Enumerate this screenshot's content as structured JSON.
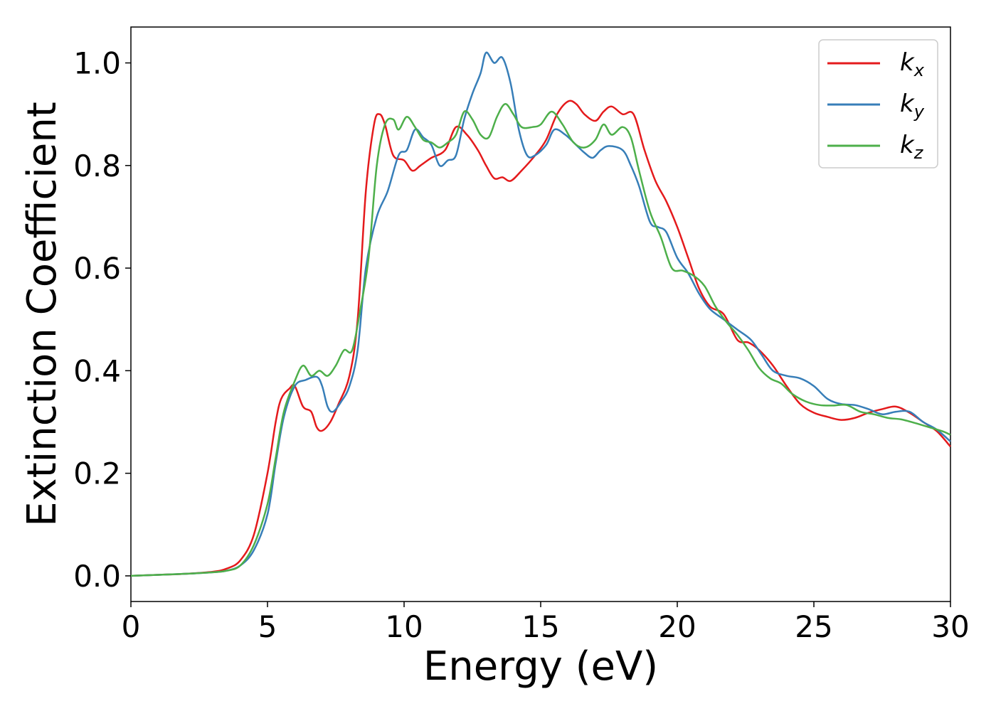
{
  "chart_data": {
    "type": "line",
    "title": "",
    "xlabel": "Energy (eV)",
    "ylabel": "Extinction Coefficient",
    "xlim": [
      0,
      30
    ],
    "ylim": [
      -0.05,
      1.07
    ],
    "xticks": [
      0,
      5,
      10,
      15,
      20,
      25,
      30
    ],
    "yticks": [
      0.0,
      0.2,
      0.4,
      0.6,
      0.8,
      1.0
    ],
    "xtick_labels": [
      "0",
      "5",
      "10",
      "15",
      "20",
      "25",
      "30"
    ],
    "ytick_labels": [
      "0.0",
      "0.2",
      "0.4",
      "0.6",
      "0.8",
      "1.0"
    ],
    "grid": false,
    "legend": {
      "placement": "top-right",
      "entries": [
        {
          "base": "k",
          "sub": "x",
          "color": "#e41a1c"
        },
        {
          "base": "k",
          "sub": "y",
          "color": "#377eb8"
        },
        {
          "base": "k",
          "sub": "z",
          "color": "#4daf4a"
        }
      ]
    },
    "series": [
      {
        "name": "kx",
        "color": "#e41a1c",
        "points": [
          [
            0,
            0.0
          ],
          [
            1,
            0.002
          ],
          [
            2,
            0.004
          ],
          [
            3,
            0.008
          ],
          [
            3.5,
            0.014
          ],
          [
            4,
            0.03
          ],
          [
            4.5,
            0.08
          ],
          [
            5,
            0.2
          ],
          [
            5.3,
            0.3
          ],
          [
            5.5,
            0.345
          ],
          [
            5.8,
            0.365
          ],
          [
            6.0,
            0.37
          ],
          [
            6.3,
            0.33
          ],
          [
            6.6,
            0.32
          ],
          [
            6.8,
            0.29
          ],
          [
            7.0,
            0.283
          ],
          [
            7.3,
            0.3
          ],
          [
            7.6,
            0.335
          ],
          [
            8.0,
            0.39
          ],
          [
            8.3,
            0.5
          ],
          [
            8.6,
            0.75
          ],
          [
            8.9,
            0.88
          ],
          [
            9.1,
            0.9
          ],
          [
            9.3,
            0.88
          ],
          [
            9.6,
            0.82
          ],
          [
            10.0,
            0.81
          ],
          [
            10.3,
            0.79
          ],
          [
            10.6,
            0.8
          ],
          [
            11.0,
            0.815
          ],
          [
            11.5,
            0.83
          ],
          [
            11.9,
            0.875
          ],
          [
            12.3,
            0.86
          ],
          [
            12.7,
            0.83
          ],
          [
            13.0,
            0.8
          ],
          [
            13.3,
            0.775
          ],
          [
            13.6,
            0.777
          ],
          [
            13.9,
            0.77
          ],
          [
            14.3,
            0.79
          ],
          [
            14.8,
            0.82
          ],
          [
            15.2,
            0.85
          ],
          [
            15.6,
            0.9
          ],
          [
            16.0,
            0.925
          ],
          [
            16.3,
            0.92
          ],
          [
            16.6,
            0.9
          ],
          [
            17.0,
            0.887
          ],
          [
            17.3,
            0.905
          ],
          [
            17.6,
            0.915
          ],
          [
            18.0,
            0.9
          ],
          [
            18.4,
            0.9
          ],
          [
            18.8,
            0.83
          ],
          [
            19.2,
            0.77
          ],
          [
            19.6,
            0.73
          ],
          [
            20.0,
            0.68
          ],
          [
            20.4,
            0.62
          ],
          [
            20.8,
            0.56
          ],
          [
            21.2,
            0.525
          ],
          [
            21.7,
            0.51
          ],
          [
            22.2,
            0.46
          ],
          [
            22.6,
            0.455
          ],
          [
            23.0,
            0.44
          ],
          [
            23.5,
            0.41
          ],
          [
            24.0,
            0.37
          ],
          [
            24.5,
            0.335
          ],
          [
            25.0,
            0.318
          ],
          [
            25.5,
            0.31
          ],
          [
            26.0,
            0.304
          ],
          [
            26.5,
            0.308
          ],
          [
            27.0,
            0.318
          ],
          [
            27.5,
            0.325
          ],
          [
            28.0,
            0.33
          ],
          [
            28.5,
            0.318
          ],
          [
            29.0,
            0.3
          ],
          [
            29.5,
            0.282
          ],
          [
            30.0,
            0.252
          ]
        ]
      },
      {
        "name": "ky",
        "color": "#377eb8",
        "points": [
          [
            0,
            0.0
          ],
          [
            1,
            0.002
          ],
          [
            2,
            0.004
          ],
          [
            3,
            0.007
          ],
          [
            3.5,
            0.01
          ],
          [
            4,
            0.02
          ],
          [
            4.5,
            0.05
          ],
          [
            5,
            0.12
          ],
          [
            5.3,
            0.22
          ],
          [
            5.6,
            0.31
          ],
          [
            6.0,
            0.37
          ],
          [
            6.4,
            0.382
          ],
          [
            6.8,
            0.388
          ],
          [
            7.0,
            0.37
          ],
          [
            7.2,
            0.33
          ],
          [
            7.4,
            0.32
          ],
          [
            7.7,
            0.34
          ],
          [
            8.0,
            0.37
          ],
          [
            8.3,
            0.44
          ],
          [
            8.6,
            0.6
          ],
          [
            9.0,
            0.7
          ],
          [
            9.4,
            0.75
          ],
          [
            9.8,
            0.82
          ],
          [
            10.1,
            0.83
          ],
          [
            10.4,
            0.87
          ],
          [
            10.7,
            0.855
          ],
          [
            11.0,
            0.84
          ],
          [
            11.3,
            0.8
          ],
          [
            11.6,
            0.81
          ],
          [
            11.9,
            0.82
          ],
          [
            12.2,
            0.89
          ],
          [
            12.5,
            0.94
          ],
          [
            12.8,
            0.98
          ],
          [
            13.0,
            1.02
          ],
          [
            13.3,
            1.0
          ],
          [
            13.6,
            1.01
          ],
          [
            13.9,
            0.96
          ],
          [
            14.2,
            0.87
          ],
          [
            14.5,
            0.82
          ],
          [
            14.8,
            0.82
          ],
          [
            15.2,
            0.84
          ],
          [
            15.5,
            0.87
          ],
          [
            15.9,
            0.86
          ],
          [
            16.3,
            0.84
          ],
          [
            16.6,
            0.825
          ],
          [
            16.9,
            0.815
          ],
          [
            17.2,
            0.83
          ],
          [
            17.5,
            0.838
          ],
          [
            18.0,
            0.83
          ],
          [
            18.3,
            0.8
          ],
          [
            18.6,
            0.76
          ],
          [
            19.0,
            0.69
          ],
          [
            19.3,
            0.68
          ],
          [
            19.6,
            0.67
          ],
          [
            20.0,
            0.62
          ],
          [
            20.4,
            0.59
          ],
          [
            20.8,
            0.55
          ],
          [
            21.2,
            0.52
          ],
          [
            21.7,
            0.5
          ],
          [
            22.2,
            0.48
          ],
          [
            22.7,
            0.46
          ],
          [
            23.1,
            0.43
          ],
          [
            23.5,
            0.4
          ],
          [
            24.0,
            0.39
          ],
          [
            24.5,
            0.385
          ],
          [
            25.0,
            0.37
          ],
          [
            25.5,
            0.345
          ],
          [
            26.0,
            0.335
          ],
          [
            26.5,
            0.333
          ],
          [
            27.0,
            0.325
          ],
          [
            27.5,
            0.315
          ],
          [
            28.0,
            0.32
          ],
          [
            28.5,
            0.32
          ],
          [
            29.0,
            0.3
          ],
          [
            29.5,
            0.285
          ],
          [
            30.0,
            0.262
          ]
        ]
      },
      {
        "name": "kz",
        "color": "#4daf4a",
        "points": [
          [
            0,
            0.0
          ],
          [
            1,
            0.002
          ],
          [
            2,
            0.004
          ],
          [
            3,
            0.007
          ],
          [
            3.5,
            0.01
          ],
          [
            4,
            0.02
          ],
          [
            4.5,
            0.06
          ],
          [
            5,
            0.14
          ],
          [
            5.3,
            0.23
          ],
          [
            5.6,
            0.32
          ],
          [
            6.0,
            0.38
          ],
          [
            6.3,
            0.41
          ],
          [
            6.6,
            0.39
          ],
          [
            6.9,
            0.4
          ],
          [
            7.2,
            0.39
          ],
          [
            7.5,
            0.41
          ],
          [
            7.8,
            0.44
          ],
          [
            8.1,
            0.44
          ],
          [
            8.4,
            0.52
          ],
          [
            8.7,
            0.62
          ],
          [
            9.0,
            0.8
          ],
          [
            9.3,
            0.88
          ],
          [
            9.6,
            0.89
          ],
          [
            9.8,
            0.87
          ],
          [
            10.1,
            0.895
          ],
          [
            10.4,
            0.875
          ],
          [
            10.7,
            0.85
          ],
          [
            11.0,
            0.845
          ],
          [
            11.3,
            0.835
          ],
          [
            11.6,
            0.845
          ],
          [
            11.9,
            0.86
          ],
          [
            12.2,
            0.905
          ],
          [
            12.5,
            0.89
          ],
          [
            12.8,
            0.86
          ],
          [
            13.1,
            0.855
          ],
          [
            13.4,
            0.895
          ],
          [
            13.7,
            0.92
          ],
          [
            14.0,
            0.9
          ],
          [
            14.3,
            0.875
          ],
          [
            14.7,
            0.875
          ],
          [
            15.0,
            0.88
          ],
          [
            15.4,
            0.905
          ],
          [
            15.8,
            0.88
          ],
          [
            16.2,
            0.845
          ],
          [
            16.6,
            0.835
          ],
          [
            17.0,
            0.85
          ],
          [
            17.3,
            0.88
          ],
          [
            17.6,
            0.86
          ],
          [
            18.0,
            0.875
          ],
          [
            18.3,
            0.855
          ],
          [
            18.6,
            0.79
          ],
          [
            19.0,
            0.71
          ],
          [
            19.4,
            0.66
          ],
          [
            19.8,
            0.6
          ],
          [
            20.2,
            0.595
          ],
          [
            20.6,
            0.585
          ],
          [
            21.0,
            0.565
          ],
          [
            21.4,
            0.525
          ],
          [
            21.8,
            0.495
          ],
          [
            22.2,
            0.47
          ],
          [
            22.6,
            0.44
          ],
          [
            23.0,
            0.405
          ],
          [
            23.4,
            0.385
          ],
          [
            23.8,
            0.375
          ],
          [
            24.2,
            0.355
          ],
          [
            24.7,
            0.34
          ],
          [
            25.2,
            0.333
          ],
          [
            25.7,
            0.332
          ],
          [
            26.2,
            0.333
          ],
          [
            26.7,
            0.32
          ],
          [
            27.2,
            0.315
          ],
          [
            27.7,
            0.308
          ],
          [
            28.2,
            0.305
          ],
          [
            28.7,
            0.298
          ],
          [
            29.2,
            0.29
          ],
          [
            29.7,
            0.282
          ],
          [
            30.0,
            0.275
          ]
        ]
      }
    ]
  }
}
